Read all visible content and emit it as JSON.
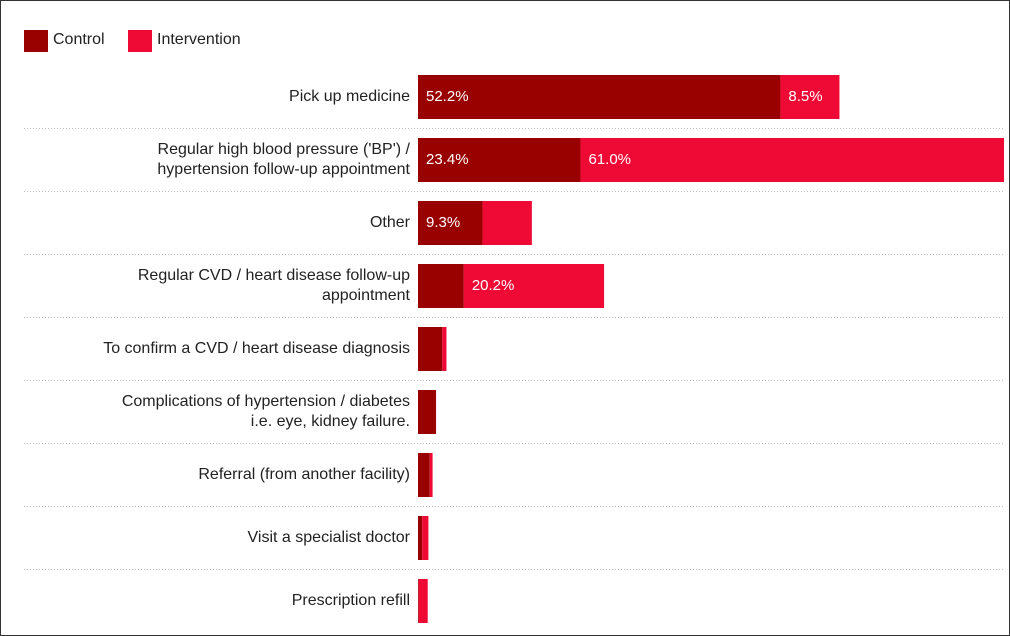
{
  "chart_data": {
    "type": "stacked-bar-horizontal",
    "categories": [
      "Pick up medicine",
      "Regular high blood pressure ('BP') /\nhypertension follow-up appointment",
      "Other",
      "Regular CVD / heart disease follow-up\nappointment",
      "To confirm a CVD / heart disease diagnosis",
      "Complications of hypertension / diabetes\ni.e. eye, kidney failure.",
      "Referral (from another facility)",
      "Visit a specialist doctor",
      "Prescription refill"
    ],
    "series": [
      {
        "name": "Control",
        "color": "#990000",
        "values": [
          52.2,
          23.4,
          9.3,
          6.6,
          3.5,
          2.6,
          1.7,
          0.6,
          0.1
        ],
        "value_labels": [
          "52.2%",
          "23.4%",
          "9.3%",
          null,
          null,
          null,
          null,
          null,
          null
        ]
      },
      {
        "name": "Intervention",
        "color": "#ee0a35",
        "values": [
          8.5,
          61.0,
          7.1,
          20.2,
          0.6,
          0,
          0.4,
          0.9,
          1.3
        ],
        "value_labels": [
          "8.5%",
          "61.0%",
          null,
          "20.2%",
          null,
          null,
          null,
          null,
          null
        ]
      }
    ]
  }
}
